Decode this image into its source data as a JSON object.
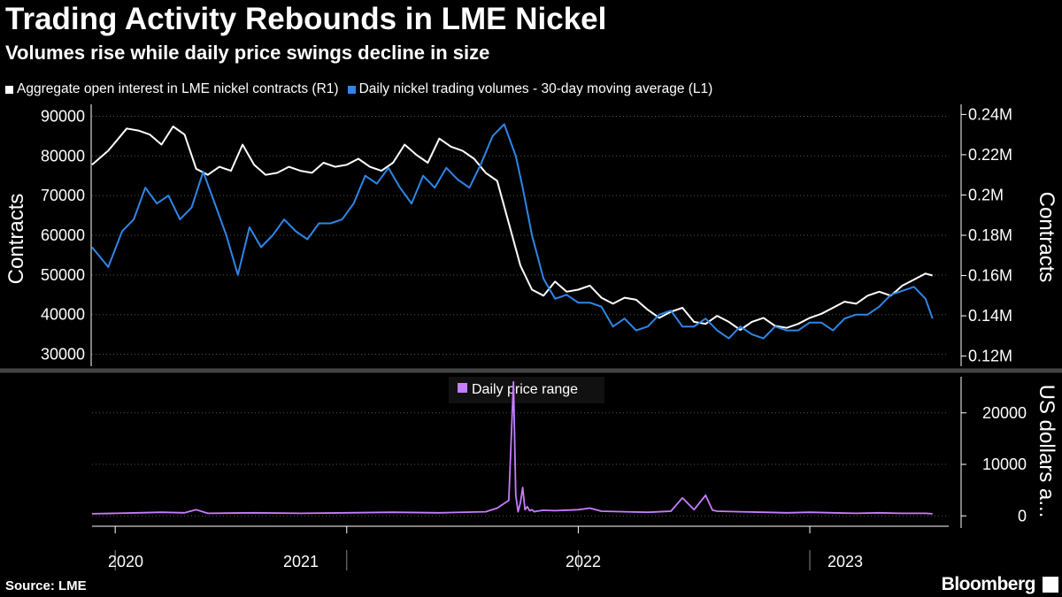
{
  "header": {
    "title": "Trading Activity Rebounds in LME Nickel",
    "subtitle": "Volumes rise while daily price swings decline in size"
  },
  "footer": {
    "source": "Source: LME",
    "brand": "Bloomberg"
  },
  "colors": {
    "background": "#000000",
    "open_interest": "#ffffff",
    "volumes": "#2f86e6",
    "price_range": "#c77dff",
    "grid": "#555555",
    "divider": "#444444"
  },
  "chart_data": [
    {
      "type": "line",
      "title": "Trading Activity Rebounds in LME Nickel",
      "subtitle": "Volumes rise while daily price swings decline in size",
      "ylabel_left": "Contracts",
      "ylabel_right": "Contracts",
      "ylim_left": [
        27000,
        93000
      ],
      "ylim_right": [
        0.115,
        0.245
      ],
      "yticks_left": [
        "90000",
        "80000",
        "70000",
        "60000",
        "50000",
        "40000",
        "30000"
      ],
      "yticks_right": [
        "0.24M",
        "0.22M",
        "0.2M",
        "0.18M",
        "0.16M",
        "0.14M",
        "0.12M"
      ],
      "xlim": [
        2019.9,
        2023.6
      ],
      "series": [
        {
          "name": "Aggregate open interest in LME nickel contracts (R1)",
          "axis": "right",
          "color": "#ffffff",
          "x": [
            2019.9,
            2019.97,
            2020.05,
            2020.1,
            2020.15,
            2020.2,
            2020.25,
            2020.3,
            2020.35,
            2020.4,
            2020.45,
            2020.5,
            2020.55,
            2020.6,
            2020.65,
            2020.7,
            2020.75,
            2020.8,
            2020.85,
            2020.9,
            2020.95,
            2021.0,
            2021.05,
            2021.1,
            2021.15,
            2021.2,
            2021.25,
            2021.3,
            2021.35,
            2021.4,
            2021.45,
            2021.5,
            2021.55,
            2021.6,
            2021.65,
            2021.7,
            2021.75,
            2021.8,
            2021.85,
            2021.9,
            2021.95,
            2022.0,
            2022.05,
            2022.1,
            2022.15,
            2022.2,
            2022.25,
            2022.3,
            2022.35,
            2022.4,
            2022.45,
            2022.5,
            2022.55,
            2022.6,
            2022.65,
            2022.7,
            2022.75,
            2022.8,
            2022.85,
            2022.9,
            2022.95,
            2023.0,
            2023.05,
            2023.1,
            2023.15,
            2023.2,
            2023.25,
            2023.3,
            2023.35,
            2023.4,
            2023.45,
            2023.5,
            2023.53
          ],
          "values": [
            0.215,
            0.222,
            0.233,
            0.232,
            0.23,
            0.225,
            0.234,
            0.23,
            0.213,
            0.21,
            0.214,
            0.212,
            0.225,
            0.215,
            0.21,
            0.211,
            0.214,
            0.212,
            0.211,
            0.216,
            0.214,
            0.215,
            0.218,
            0.214,
            0.212,
            0.216,
            0.225,
            0.22,
            0.216,
            0.228,
            0.224,
            0.222,
            0.218,
            0.211,
            0.207,
            0.186,
            0.165,
            0.153,
            0.15,
            0.157,
            0.152,
            0.153,
            0.155,
            0.149,
            0.146,
            0.149,
            0.148,
            0.143,
            0.139,
            0.142,
            0.144,
            0.137,
            0.136,
            0.14,
            0.137,
            0.133,
            0.137,
            0.139,
            0.135,
            0.134,
            0.136,
            0.139,
            0.141,
            0.144,
            0.147,
            0.146,
            0.15,
            0.152,
            0.15,
            0.155,
            0.158,
            0.161,
            0.16
          ]
        },
        {
          "name": "Daily nickel trading volumes - 30-day moving average (L1)",
          "axis": "left",
          "color": "#2f86e6",
          "x": [
            2019.9,
            2019.97,
            2020.03,
            2020.08,
            2020.13,
            2020.18,
            2020.23,
            2020.28,
            2020.33,
            2020.38,
            2020.43,
            2020.48,
            2020.53,
            2020.58,
            2020.63,
            2020.68,
            2020.73,
            2020.78,
            2020.83,
            2020.88,
            2020.93,
            2020.98,
            2021.03,
            2021.08,
            2021.13,
            2021.18,
            2021.23,
            2021.28,
            2021.33,
            2021.38,
            2021.43,
            2021.48,
            2021.53,
            2021.58,
            2021.63,
            2021.68,
            2021.73,
            2021.76,
            2021.8,
            2021.85,
            2021.9,
            2021.95,
            2022.0,
            2022.05,
            2022.1,
            2022.15,
            2022.2,
            2022.25,
            2022.3,
            2022.35,
            2022.4,
            2022.45,
            2022.5,
            2022.55,
            2022.6,
            2022.65,
            2022.7,
            2022.75,
            2022.8,
            2022.85,
            2022.9,
            2022.95,
            2023.0,
            2023.05,
            2023.1,
            2023.15,
            2023.2,
            2023.25,
            2023.3,
            2023.35,
            2023.4,
            2023.45,
            2023.5,
            2023.53
          ],
          "values": [
            57000,
            52000,
            61000,
            64000,
            72000,
            68000,
            70000,
            64000,
            67000,
            76000,
            68000,
            60000,
            50000,
            62000,
            57000,
            60000,
            64000,
            61000,
            59000,
            63000,
            63000,
            64000,
            68000,
            75000,
            73000,
            77000,
            72000,
            68000,
            75000,
            72000,
            77000,
            74000,
            72000,
            78000,
            85000,
            88000,
            80000,
            72000,
            60000,
            49000,
            44000,
            45000,
            43000,
            43000,
            42000,
            37000,
            39000,
            36000,
            37000,
            40000,
            41000,
            37000,
            37000,
            39000,
            36000,
            34000,
            37000,
            35000,
            34000,
            37000,
            36000,
            36000,
            38000,
            38000,
            36000,
            39000,
            40000,
            40000,
            42000,
            45000,
            46000,
            47000,
            44000,
            39000
          ]
        }
      ],
      "legend": [
        "Aggregate open interest in LME nickel contracts (R1)",
        "Daily nickel trading volumes - 30-day moving average (L1)"
      ]
    },
    {
      "type": "line",
      "ylabel_right": "US dollars a...",
      "ylim": [
        -1500,
        27000
      ],
      "yticks": [
        "20000",
        "10000",
        "0"
      ],
      "xlim": [
        2019.9,
        2023.6
      ],
      "legend": [
        "Daily price range"
      ],
      "series": [
        {
          "name": "Daily price range",
          "color": "#c77dff",
          "x": [
            2019.9,
            2020.0,
            2020.1,
            2020.2,
            2020.3,
            2020.35,
            2020.4,
            2020.6,
            2020.8,
            2021.0,
            2021.2,
            2021.4,
            2021.6,
            2021.65,
            2021.7,
            2021.72,
            2021.73,
            2021.74,
            2021.75,
            2021.76,
            2021.77,
            2021.78,
            2021.79,
            2021.8,
            2021.81,
            2021.82,
            2021.85,
            2021.9,
            2022.0,
            2022.05,
            2022.1,
            2022.2,
            2022.3,
            2022.4,
            2022.45,
            2022.5,
            2022.55,
            2022.58,
            2022.6,
            2022.7,
            2022.8,
            2022.9,
            2023.0,
            2023.1,
            2023.2,
            2023.3,
            2023.4,
            2023.5,
            2023.53
          ],
          "values": [
            400,
            500,
            600,
            700,
            600,
            1200,
            500,
            600,
            500,
            600,
            700,
            600,
            800,
            1500,
            3000,
            26000,
            4000,
            800,
            2500,
            5500,
            1200,
            1800,
            1000,
            1200,
            800,
            900,
            1100,
            1000,
            1200,
            1500,
            900,
            800,
            700,
            900,
            3500,
            1200,
            4000,
            1100,
            900,
            800,
            700,
            600,
            700,
            600,
            500,
            600,
            500,
            500,
            400
          ]
        }
      ]
    }
  ],
  "axes": {
    "years": [
      "2020",
      "2021",
      "2022",
      "2023"
    ]
  }
}
